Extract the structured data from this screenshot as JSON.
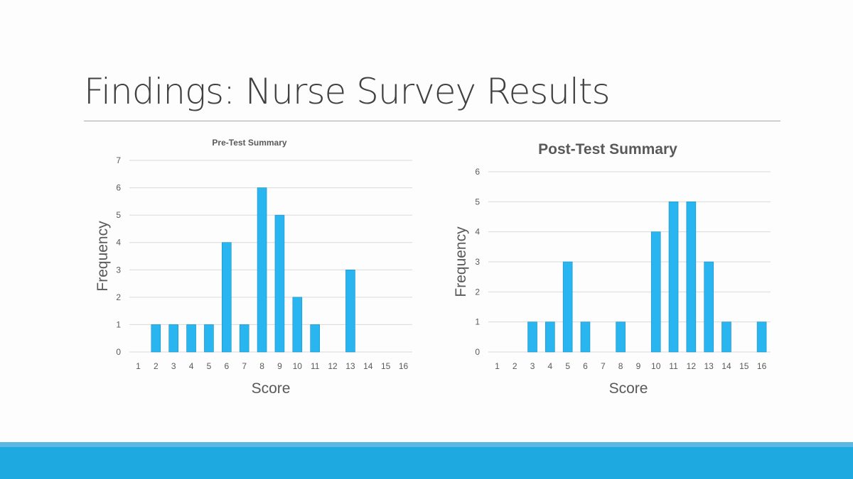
{
  "slide": {
    "title": "Findings: Nurse Survey Results"
  },
  "colors": {
    "bar": "#29b6f0",
    "bar_edge": "#1a8fc4",
    "band": "#1eaae1",
    "band_light": "#5ab9e2"
  },
  "chart_data": [
    {
      "type": "bar",
      "title": "Pre-Test Summary",
      "xlabel": "Score",
      "ylabel": "Frequency",
      "categories": [
        "1",
        "2",
        "3",
        "4",
        "5",
        "6",
        "7",
        "8",
        "9",
        "10",
        "11",
        "12",
        "13",
        "14",
        "15",
        "16"
      ],
      "values": [
        0,
        1,
        1,
        1,
        1,
        4,
        1,
        6,
        5,
        2,
        1,
        0,
        3,
        0,
        0,
        0
      ],
      "ylim": [
        0,
        7
      ],
      "yticks": [
        "0",
        "1",
        "2",
        "3",
        "4",
        "5",
        "6",
        "7"
      ],
      "grid": true
    },
    {
      "type": "bar",
      "title": "Post-Test Summary",
      "xlabel": "Score",
      "ylabel": "Frequency",
      "categories": [
        "1",
        "2",
        "3",
        "4",
        "5",
        "6",
        "7",
        "8",
        "9",
        "10",
        "11",
        "12",
        "13",
        "14",
        "15",
        "16"
      ],
      "values": [
        0,
        0,
        1,
        1,
        3,
        1,
        0,
        1,
        0,
        4,
        5,
        5,
        3,
        1,
        0,
        1
      ],
      "ylim": [
        0,
        6
      ],
      "yticks": [
        "0",
        "1",
        "2",
        "3",
        "4",
        "5",
        "6"
      ],
      "grid": true
    }
  ]
}
